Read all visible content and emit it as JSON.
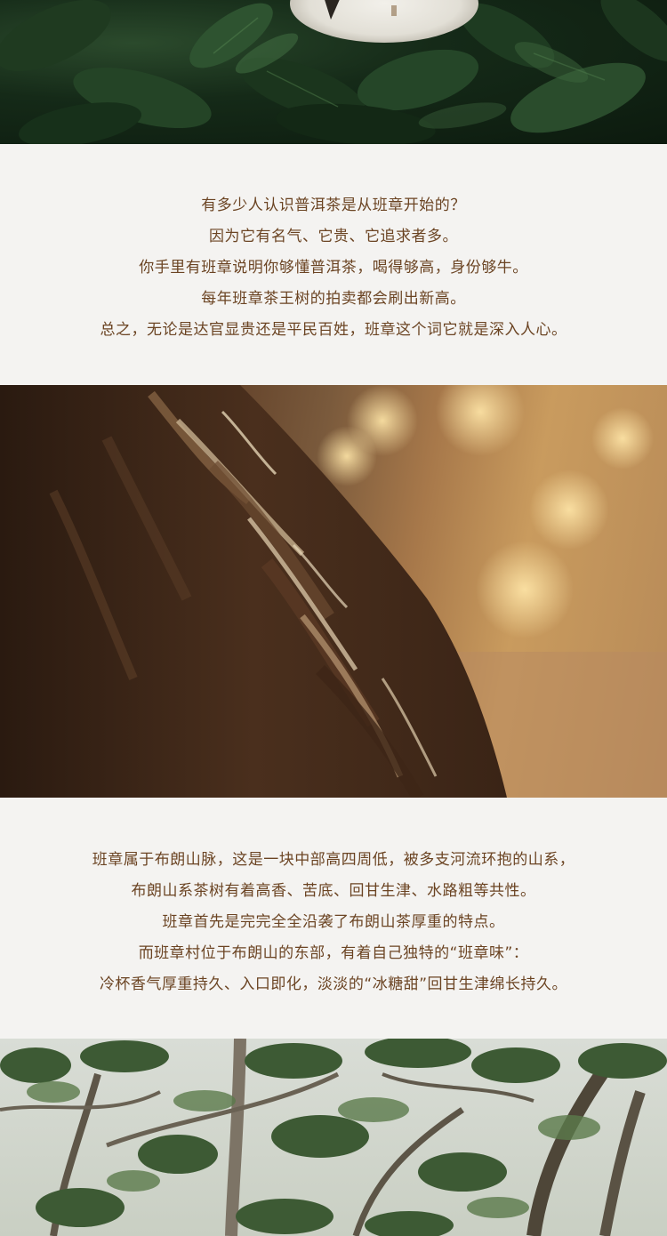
{
  "sections": {
    "intro": {
      "lines": [
        "有多少人认识普洱茶是从班章开始的？",
        "因为它有名气、它贵、它追求者多。",
        "你手里有班章说明你够懂普洱茶，喝得够高，身份够牛。",
        "每年班章茶王树的拍卖都会刷出新高。",
        "总之，无论是达官显贵还是平民百姓，班章这个词它就是深入人心。"
      ]
    },
    "origin": {
      "lines": [
        "班章属于布朗山脉，这是一块中部高四周低，被多支河流环抱的山系，",
        "布朗山系茶树有着高香、苦底、回甘生津、水路粗等共性。",
        "班章首先是完完全全沿袭了布朗山茶厚重的特点。",
        "而班章村位于布朗山的东部，有着自己独特的“班章味”：",
        "冷杯香气厚重持久、入口即化，淡淡的“冰糖甜”回甘生津绵长持久。"
      ]
    }
  },
  "colors": {
    "text": "#6b4423",
    "background": "#f4f3f1"
  }
}
